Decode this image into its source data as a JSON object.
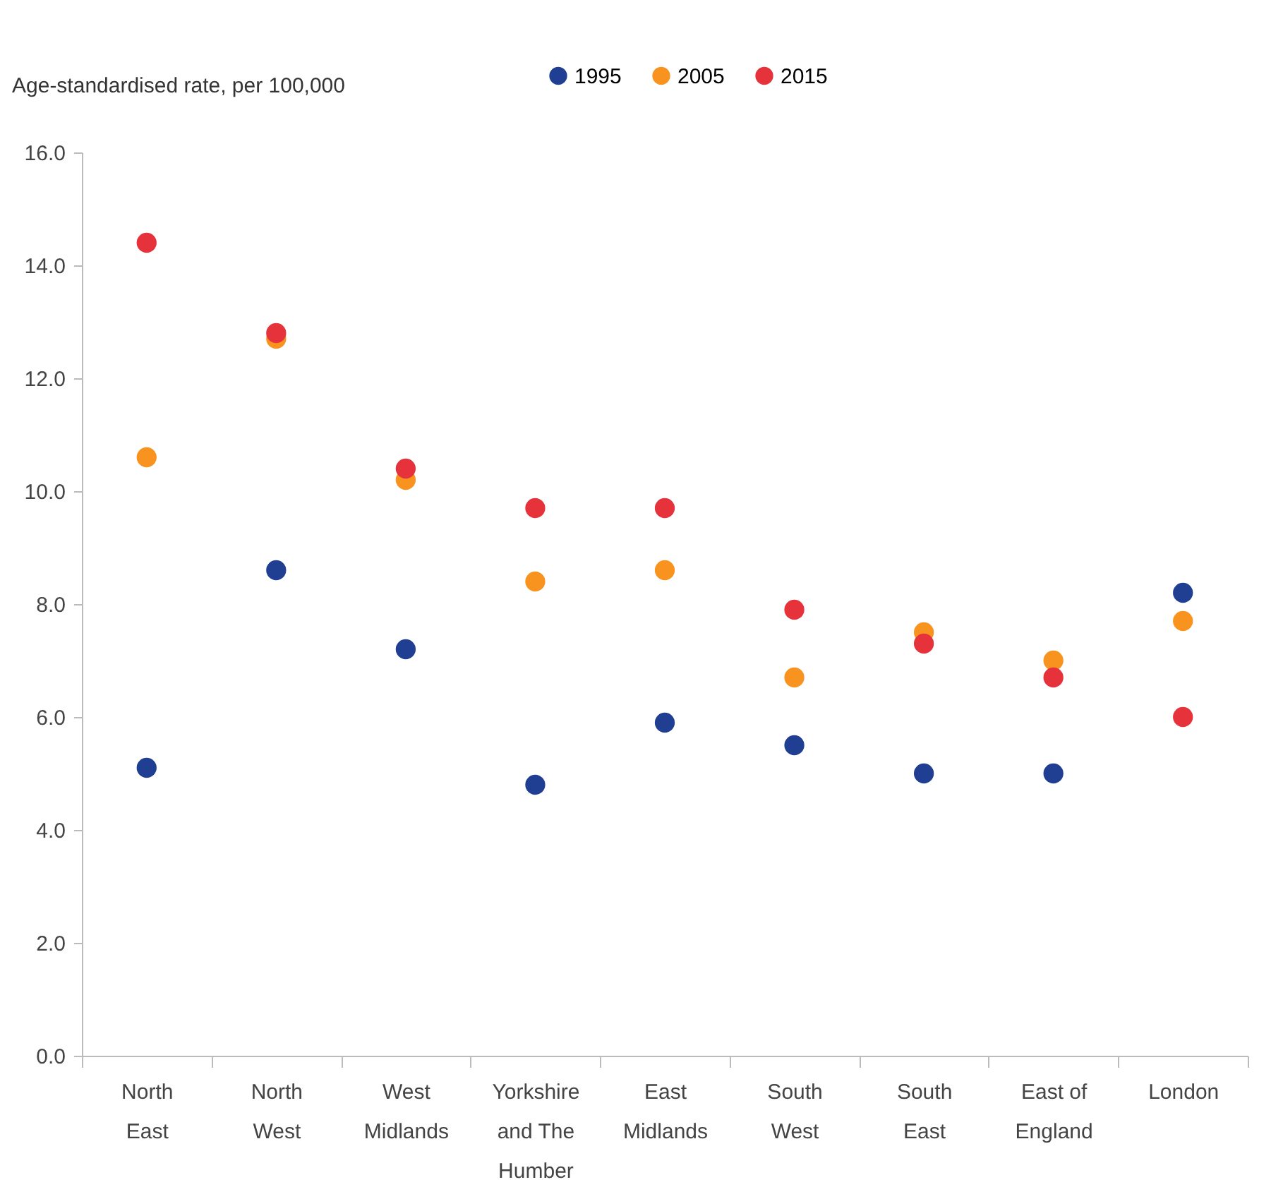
{
  "chart_data": {
    "type": "scatter",
    "ylabel": "Age-standardised rate, per 100,000",
    "categories": [
      "North East",
      "North West",
      "West Midlands",
      "Yorkshire and The Humber",
      "East Midlands",
      "South West",
      "South East",
      "East of England",
      "London"
    ],
    "series": [
      {
        "name": "1995",
        "color": "#203f92",
        "values": [
          5.1,
          8.6,
          7.2,
          4.8,
          5.9,
          5.5,
          5.0,
          5.0,
          8.2
        ]
      },
      {
        "name": "2005",
        "color": "#f7931e",
        "values": [
          10.6,
          12.7,
          10.2,
          8.4,
          8.6,
          6.7,
          7.5,
          7.0,
          7.7
        ]
      },
      {
        "name": "2015",
        "color": "#e5323b",
        "values": [
          14.4,
          12.8,
          10.4,
          9.7,
          9.7,
          7.9,
          7.3,
          6.7,
          6.0
        ]
      }
    ],
    "ylim": [
      0,
      16
    ],
    "yticks": [
      {
        "value": 0,
        "label": "0.0"
      },
      {
        "value": 2,
        "label": "2.0"
      },
      {
        "value": 4,
        "label": "4.0"
      },
      {
        "value": 6,
        "label": "6.0"
      },
      {
        "value": 8,
        "label": "8.0"
      },
      {
        "value": 10,
        "label": "10.0"
      },
      {
        "value": 12,
        "label": "12.0"
      },
      {
        "value": 14,
        "label": "14.0"
      },
      {
        "value": 16,
        "label": "16.0"
      }
    ],
    "legend": "top",
    "grid": false,
    "marker": "circle"
  }
}
